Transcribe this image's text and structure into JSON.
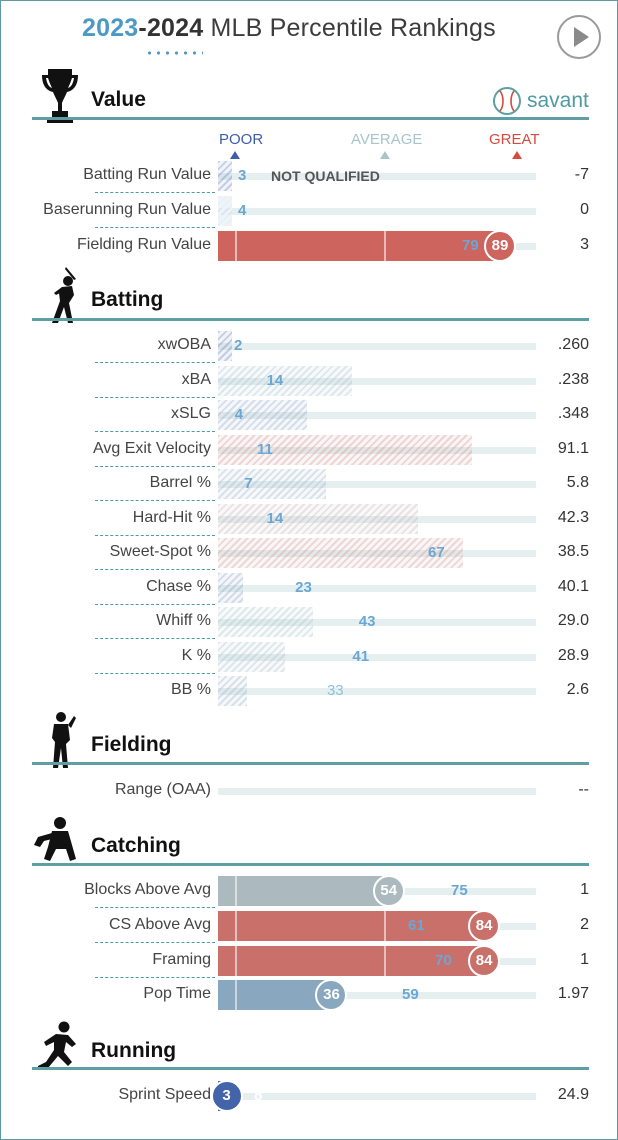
{
  "header": {
    "year_start": "2023",
    "year_sep": "-",
    "year_end": "2024",
    "title": " MLB Percentile Rankings"
  },
  "brand": {
    "name": "savant"
  },
  "scale": {
    "poor": "POOR",
    "average": "AVERAGE",
    "great": "GREAT"
  },
  "colors": {
    "poor": "#3e5ea8",
    "average": "#a8c4ca",
    "great": "#d8493e",
    "accent": "#5e9fa5"
  },
  "sections": {
    "value": "Value",
    "batting": "Batting",
    "fielding": "Fielding",
    "catching": "Catching",
    "running": "Running"
  },
  "not_qualified_label": "NOT QUALIFIED",
  "chart_data": {
    "type": "bar",
    "title": "2023-2024 MLB Percentile Rankings",
    "xlim": [
      0,
      100
    ],
    "groups": [
      {
        "name": "Value",
        "metrics": [
          {
            "label": "Batting Run Value",
            "percentile": 3,
            "value": "-7",
            "not_qualified": true
          },
          {
            "label": "Baserunning Run Value",
            "percentile": 4,
            "value": "0",
            "light_bar": true
          },
          {
            "label": "Fielding Run Value",
            "percentile": 89,
            "previous": 79,
            "value": "3"
          }
        ]
      },
      {
        "name": "Batting",
        "metrics": [
          {
            "label": "xwOBA",
            "percentile": 2,
            "value": ".260"
          },
          {
            "label": "xBA",
            "percentile": 14,
            "bar_level": 42,
            "value": ".238"
          },
          {
            "label": "xSLG",
            "percentile": 4,
            "bar_level": 28,
            "value": ".348"
          },
          {
            "label": "Avg Exit Velocity",
            "percentile": 11,
            "bar_level": 80,
            "value": "91.1"
          },
          {
            "label": "Barrel %",
            "percentile": 7,
            "bar_level": 34,
            "value": "5.8"
          },
          {
            "label": "Hard-Hit %",
            "percentile": 14,
            "bar_level": 63,
            "value": "42.3"
          },
          {
            "label": "Sweet-Spot %",
            "percentile": 67,
            "bar_level": 77,
            "value": "38.5"
          },
          {
            "label": "Chase %",
            "percentile": 23,
            "bar_level": 8,
            "value": "40.1"
          },
          {
            "label": "Whiff %",
            "percentile": 43,
            "bar_level": 30,
            "value": "29.0"
          },
          {
            "label": "K %",
            "percentile": 41,
            "bar_level": 21,
            "value": "28.9"
          },
          {
            "label": "BB %",
            "percentile": 33,
            "bar_level": 9,
            "value": "2.6"
          }
        ]
      },
      {
        "name": "Fielding",
        "metrics": [
          {
            "label": "Range (OAA)",
            "percentile": null,
            "value": "--"
          }
        ]
      },
      {
        "name": "Catching",
        "metrics": [
          {
            "label": "Blocks Above Avg",
            "percentile": 54,
            "previous": 75,
            "value": "1"
          },
          {
            "label": "CS Above Avg",
            "percentile": 84,
            "previous": 61,
            "value": "2"
          },
          {
            "label": "Framing",
            "percentile": 84,
            "previous": 70,
            "value": "1"
          },
          {
            "label": "Pop Time",
            "percentile": 36,
            "previous": 59,
            "value": "1.97"
          }
        ]
      },
      {
        "name": "Running",
        "metrics": [
          {
            "label": "Sprint Speed",
            "percentile": 3,
            "previous": 8,
            "value": "24.9"
          }
        ]
      }
    ]
  }
}
